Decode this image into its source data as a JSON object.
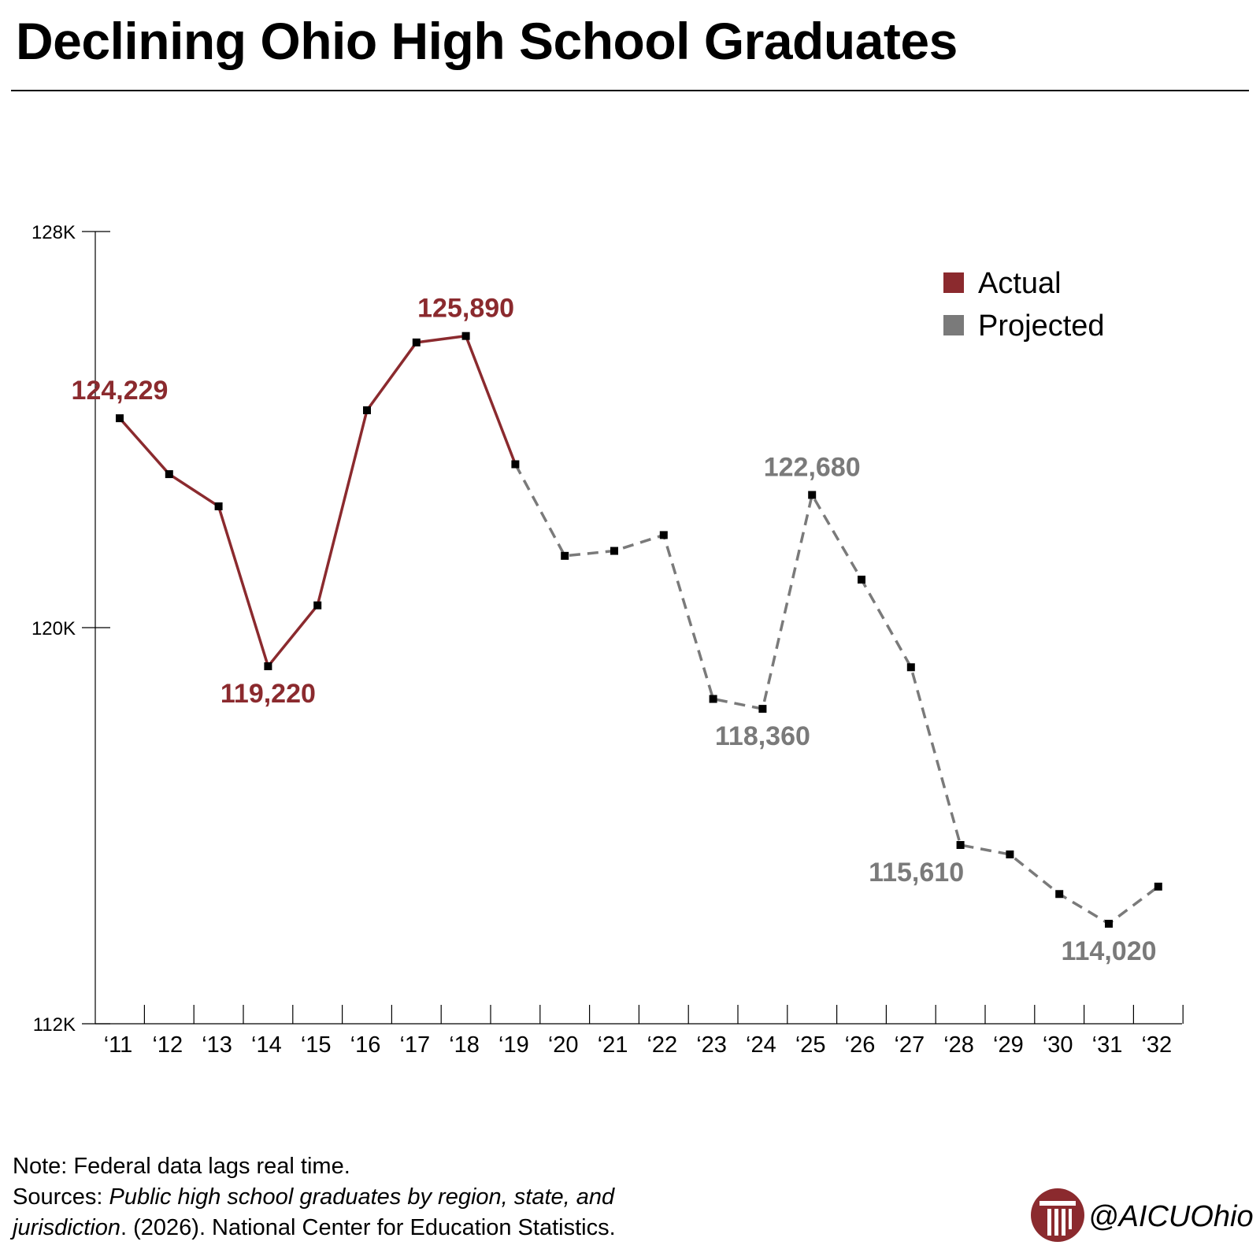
{
  "title": "Declining Ohio High School Graduates",
  "chart_data": {
    "type": "line",
    "title": "Declining Ohio High School Graduates",
    "xlabel": "",
    "ylabel": "",
    "ylim": [
      112000,
      128000
    ],
    "yticks": [
      {
        "value": 128000,
        "label": "128K"
      },
      {
        "value": 120000,
        "label": "120K"
      },
      {
        "value": 112000,
        "label": "112K"
      }
    ],
    "categories": [
      "‘11",
      "‘12",
      "‘13",
      "‘14",
      "‘15",
      "‘16",
      "‘17",
      "‘18",
      "‘19",
      "‘20",
      "‘21",
      "‘22",
      "‘23",
      "‘24",
      "‘25",
      "‘26",
      "‘27",
      "‘28",
      "‘29",
      "‘30",
      "‘31",
      "‘32"
    ],
    "series": [
      {
        "name": "Actual",
        "color": "#8b2a2e",
        "style": "solid",
        "points": [
          {
            "x": "‘11",
            "y": 124229
          },
          {
            "x": "‘12",
            "y": 123100
          },
          {
            "x": "‘13",
            "y": 122450
          },
          {
            "x": "‘14",
            "y": 119220
          },
          {
            "x": "‘15",
            "y": 120450
          },
          {
            "x": "‘16",
            "y": 124390
          },
          {
            "x": "‘17",
            "y": 125760
          },
          {
            "x": "‘18",
            "y": 125890
          },
          {
            "x": "‘19",
            "y": 123300
          }
        ]
      },
      {
        "name": "Projected",
        "color": "#7a7a7a",
        "style": "dashed",
        "points": [
          {
            "x": "‘19",
            "y": 123300
          },
          {
            "x": "‘20",
            "y": 121450
          },
          {
            "x": "‘21",
            "y": 121550
          },
          {
            "x": "‘22",
            "y": 121870
          },
          {
            "x": "‘23",
            "y": 118560
          },
          {
            "x": "‘24",
            "y": 118360
          },
          {
            "x": "‘25",
            "y": 122680
          },
          {
            "x": "‘26",
            "y": 120970
          },
          {
            "x": "‘27",
            "y": 119200
          },
          {
            "x": "‘28",
            "y": 115610
          },
          {
            "x": "‘29",
            "y": 115420
          },
          {
            "x": "‘30",
            "y": 114620
          },
          {
            "x": "‘31",
            "y": 114020
          },
          {
            "x": "‘32",
            "y": 114770
          }
        ]
      }
    ],
    "annotations": [
      {
        "x": "‘11",
        "y": 124229,
        "text": "124,229",
        "series": "Actual",
        "position": "above"
      },
      {
        "x": "‘14",
        "y": 119220,
        "text": "119,220",
        "series": "Actual",
        "position": "below"
      },
      {
        "x": "‘18",
        "y": 125890,
        "text": "125,890",
        "series": "Actual",
        "position": "above"
      },
      {
        "x": "‘24",
        "y": 118360,
        "text": "118,360",
        "series": "Projected",
        "position": "below"
      },
      {
        "x": "‘25",
        "y": 122680,
        "text": "122,680",
        "series": "Projected",
        "position": "above"
      },
      {
        "x": "‘28",
        "y": 115610,
        "text": "115,610",
        "series": "Projected",
        "position": "below-left"
      },
      {
        "x": "‘31",
        "y": 114020,
        "text": "114,020",
        "series": "Projected",
        "position": "below"
      }
    ],
    "legend": {
      "placement": "top-right",
      "items": [
        {
          "label": "Actual",
          "color": "#8b2a2e"
        },
        {
          "label": "Projected",
          "color": "#7a7a7a"
        }
      ]
    },
    "grid": false,
    "marker_color": "#000000"
  },
  "footer": {
    "note": "Note: Federal data lags real time.",
    "sources_prefix": "Sources: ",
    "sources_title_1": "Public high school graduates by region, state, and",
    "sources_title_2": "jurisdiction",
    "sources_rest": ". (2026). National Center for Education Statistics."
  },
  "brand": {
    "handle": "@AICUOhio",
    "logo_icon": "aicu-column-logo-icon",
    "logo_color": "#8b2a2e"
  }
}
